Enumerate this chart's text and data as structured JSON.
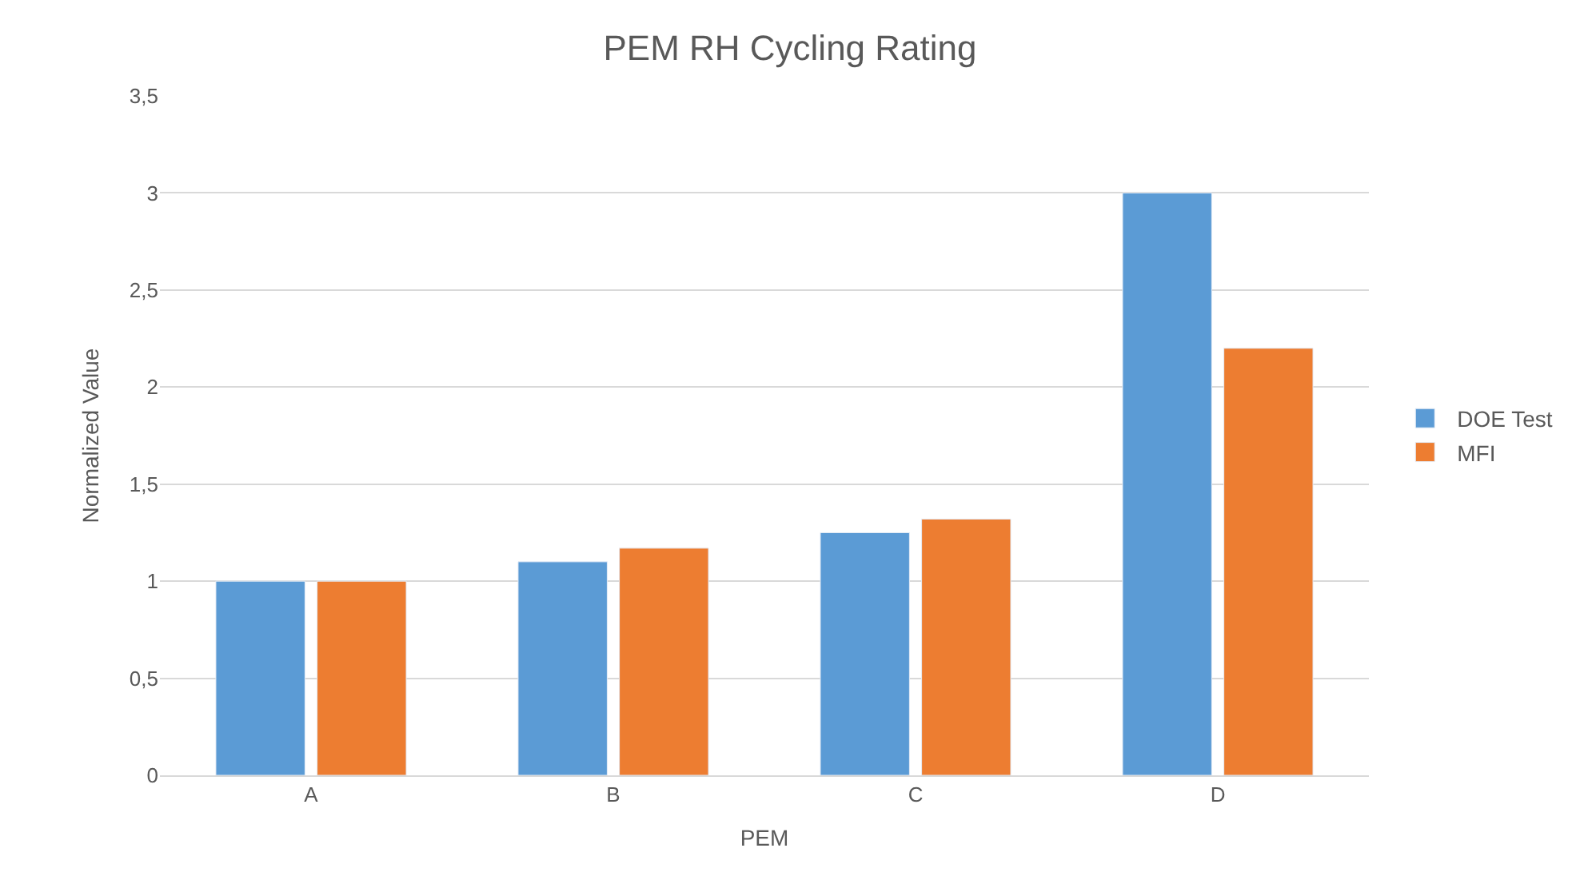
{
  "chart_data": {
    "type": "bar",
    "title": "PEM RH Cycling Rating",
    "xlabel": "PEM",
    "ylabel": "Normalized Value",
    "categories": [
      "A",
      "B",
      "C",
      "D"
    ],
    "series": [
      {
        "name": "DOE Test",
        "color": "#5b9bd5",
        "values": [
          1.0,
          1.1,
          1.25,
          3.0
        ]
      },
      {
        "name": "MFI",
        "color": "#ed7d31",
        "values": [
          1.0,
          1.17,
          1.32,
          2.2
        ]
      }
    ],
    "ylim": [
      0,
      3.5
    ],
    "yticks": [
      0,
      {
        "value": 0.5,
        "label": "0,5"
      },
      1,
      {
        "value": 1.5,
        "label": "1,5"
      },
      2,
      {
        "value": 2.5,
        "label": "2,5"
      },
      3,
      {
        "value": 3.5,
        "label": "3,5"
      }
    ],
    "grid": "y",
    "legend": "right"
  }
}
